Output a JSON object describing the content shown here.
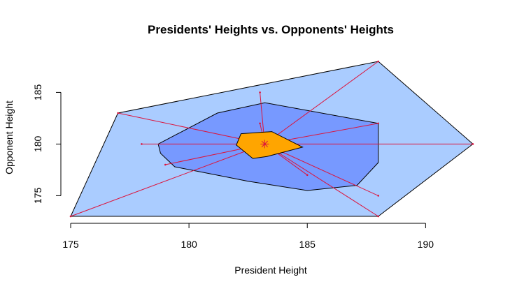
{
  "chart_data": {
    "type": "scatter",
    "title": "Presidents' Heights vs. Opponents' Heights",
    "xlabel": "President Height",
    "ylabel": "Opponent Height",
    "xlim": [
      175,
      192
    ],
    "ylim": [
      173,
      188
    ],
    "x_ticks": [
      "175",
      "180",
      "185",
      "190"
    ],
    "y_ticks": [
      "175",
      "180",
      "185"
    ],
    "grid": false,
    "colors": {
      "outer_hull": "#aaccff",
      "inner_hull": "#7799ff",
      "median_region": "#ffa500",
      "rays": "#dc143c",
      "center": "#dc143c"
    },
    "center": {
      "x": 183.2,
      "y": 180
    },
    "outer_hull": [
      {
        "x": 175,
        "y": 173
      },
      {
        "x": 177,
        "y": 183
      },
      {
        "x": 188,
        "y": 188
      },
      {
        "x": 192,
        "y": 180
      },
      {
        "x": 188,
        "y": 173
      }
    ],
    "inner_hull": [
      {
        "x": 178.7,
        "y": 180
      },
      {
        "x": 181.2,
        "y": 183
      },
      {
        "x": 183.2,
        "y": 184
      },
      {
        "x": 188,
        "y": 182
      },
      {
        "x": 188,
        "y": 178.2
      },
      {
        "x": 187.1,
        "y": 176
      },
      {
        "x": 185,
        "y": 175.5
      },
      {
        "x": 182.5,
        "y": 176.4
      },
      {
        "x": 179.4,
        "y": 177.8
      },
      {
        "x": 178.8,
        "y": 179.1
      }
    ],
    "median_region": [
      {
        "x": 182.2,
        "y": 181
      },
      {
        "x": 183.5,
        "y": 181.2
      },
      {
        "x": 184.8,
        "y": 179.7
      },
      {
        "x": 183.3,
        "y": 178.8
      },
      {
        "x": 182.7,
        "y": 178.6
      },
      {
        "x": 182,
        "y": 179.9
      }
    ],
    "points": [
      {
        "x": 175,
        "y": 173
      },
      {
        "x": 177,
        "y": 183
      },
      {
        "x": 178,
        "y": 180
      },
      {
        "x": 179,
        "y": 178
      },
      {
        "x": 183,
        "y": 182
      },
      {
        "x": 183,
        "y": 185
      },
      {
        "x": 185,
        "y": 177
      },
      {
        "x": 188,
        "y": 188
      },
      {
        "x": 188,
        "y": 182
      },
      {
        "x": 188,
        "y": 175
      },
      {
        "x": 188,
        "y": 173
      },
      {
        "x": 192,
        "y": 180
      }
    ]
  }
}
